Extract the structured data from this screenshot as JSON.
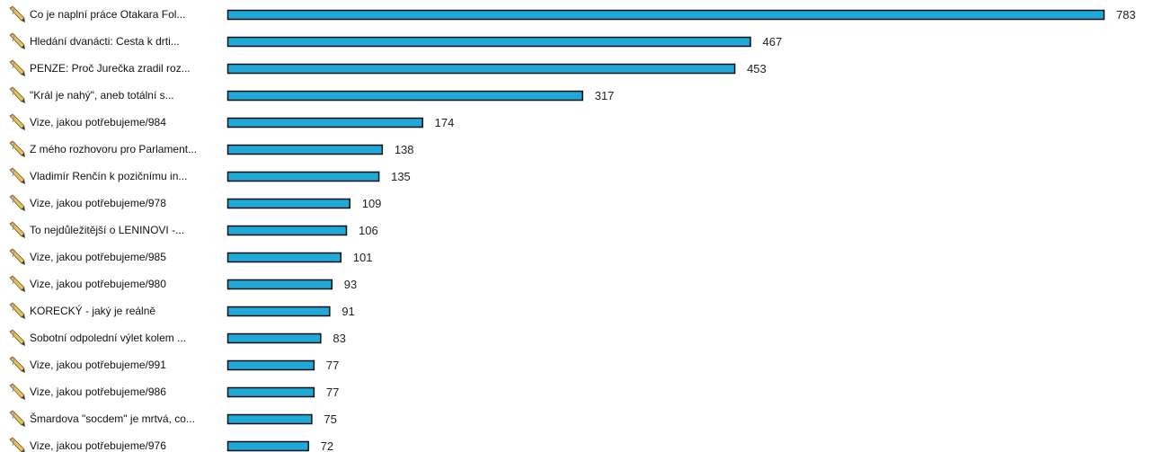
{
  "chart_data": {
    "type": "bar",
    "orientation": "horizontal",
    "bar_color": "#1fa8d8",
    "bar_border_color": "#111111",
    "row_icon": "pencil-icon",
    "xlim": [
      0,
      783
    ],
    "grid": false,
    "categories": [
      "Co je naplní práce Otakara Fol...",
      "Hledání dvanácti: Cesta k drti...",
      "PENZE: Proč Jurečka zradil roz...",
      "\"Král je nahý\", aneb totální s...",
      "Vize, jakou potřebujeme/984",
      "Z mého rozhovoru pro Parlament...",
      "Vladimír Renčín k pozičnímu in...",
      "Vize, jakou potřebujeme/978",
      "To nejdůležitější o LENINOVI -...",
      "Vize, jakou potřebujeme/985",
      "Vize, jakou potřebujeme/980",
      "KORECKÝ - jaký je reálně",
      "Sobotní odpolední výlet kolem ...",
      "Vize, jakou potřebujeme/991",
      "Vize, jakou potřebujeme/986",
      "Šmardova \"socdem\" je mrtvá, co...",
      "Vize, jakou potřebujeme/976"
    ],
    "values": [
      783,
      467,
      453,
      317,
      174,
      138,
      135,
      109,
      106,
      101,
      93,
      91,
      83,
      77,
      77,
      75,
      72
    ]
  }
}
